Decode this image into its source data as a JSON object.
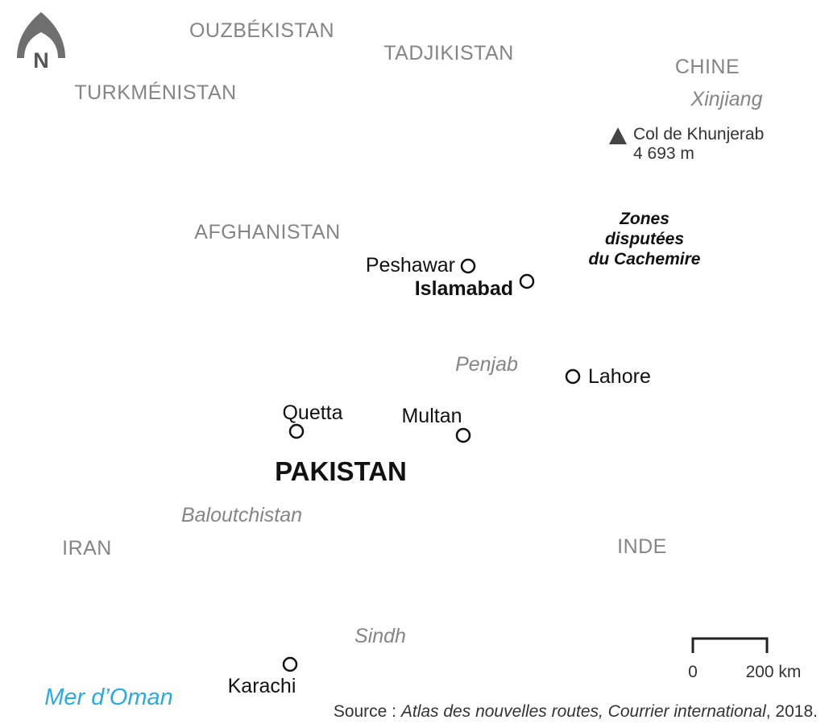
{
  "compass": "N",
  "countries": {
    "uzbekistan": "OUZBÉKISTAN",
    "tajikistan": "TADJIKISTAN",
    "china": "CHINE",
    "turkmenistan": "TURKMÉNISTAN",
    "afghanistan": "AFGHANISTAN",
    "pakistan": "PAKISTAN",
    "iran": "IRAN",
    "india": "INDE"
  },
  "regions": {
    "xinjiang": "Xinjiang",
    "punjab": "Penjab",
    "balochistan": "Baloutchistan",
    "sindh": "Sindh"
  },
  "pass": {
    "name": "Col de Khunjerab",
    "elevation": "4 693 m"
  },
  "disputed": [
    "Zones",
    "disputées",
    "du Cachemire"
  ],
  "cities": {
    "peshawar": "Peshawar",
    "islamabad": "Islamabad",
    "lahore": "Lahore",
    "quetta": "Quetta",
    "multan": "Multan",
    "karachi": "Karachi"
  },
  "sea": "Mer d’Oman",
  "scale": {
    "start": "0",
    "end": "200 km"
  },
  "source": {
    "prefix": "Source : ",
    "title": "Atlas des nouvelles routes, Courrier international",
    "suffix": ", 2018."
  }
}
